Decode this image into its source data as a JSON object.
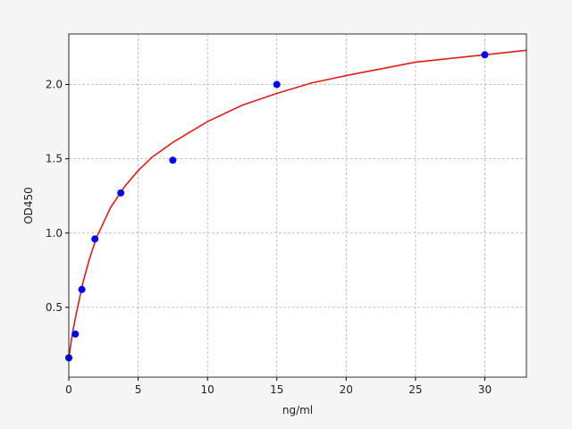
{
  "chart_data": {
    "type": "scatter",
    "xlabel": "ng/ml",
    "ylabel": "OD450",
    "xlim": [
      0,
      33
    ],
    "ylim": [
      0.03,
      2.34
    ],
    "xticks": [
      0,
      5,
      10,
      15,
      20,
      25,
      30
    ],
    "yticks": [
      0.5,
      {
        "value": 1.0,
        "label": "1.0"
      },
      1.5,
      {
        "value": 2.0,
        "label": "2.0"
      }
    ],
    "grid": true,
    "series": [
      {
        "mode": "markers",
        "color": "#0000ff",
        "x": [
          0,
          0.47,
          0.94,
          1.88,
          3.75,
          7.5,
          15,
          30
        ],
        "values": [
          0.16,
          0.32,
          0.62,
          0.96,
          1.27,
          1.49,
          2.0,
          2.2
        ]
      },
      {
        "mode": "line",
        "color": "#e31a1c",
        "x": [
          0,
          0.25,
          0.5,
          1,
          1.5,
          2,
          3,
          4,
          5,
          6,
          7.5,
          10,
          12.5,
          15,
          17.5,
          20,
          25,
          30,
          33
        ],
        "values": [
          0.16,
          0.32,
          0.44,
          0.66,
          0.83,
          0.97,
          1.17,
          1.31,
          1.42,
          1.51,
          1.61,
          1.75,
          1.86,
          1.94,
          2.01,
          2.06,
          2.15,
          2.2,
          2.23
        ]
      }
    ]
  }
}
